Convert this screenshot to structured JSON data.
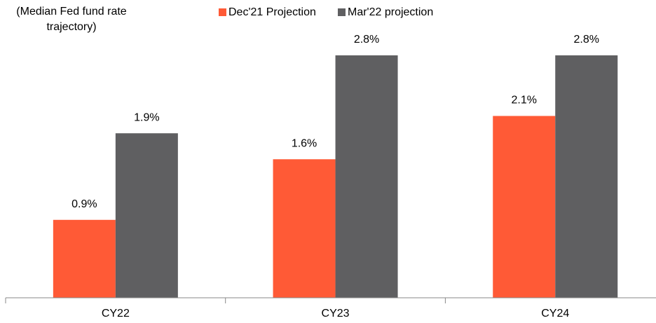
{
  "chart_data": {
    "type": "bar",
    "title": "(Median Fed fund rate trajectory)",
    "categories": [
      "CY22",
      "CY23",
      "CY24"
    ],
    "series": [
      {
        "name": "Dec'21 Projection",
        "color": "#ff5a36",
        "values": [
          0.9,
          1.6,
          2.1
        ],
        "value_labels": [
          "0.9%",
          "1.6%",
          "2.1%"
        ]
      },
      {
        "name": "Mar'22 projection",
        "color": "#5f5f61",
        "values": [
          1.9,
          2.8,
          2.8
        ],
        "value_labels": [
          "1.9%",
          "2.8%",
          "2.8%"
        ]
      }
    ]
  }
}
